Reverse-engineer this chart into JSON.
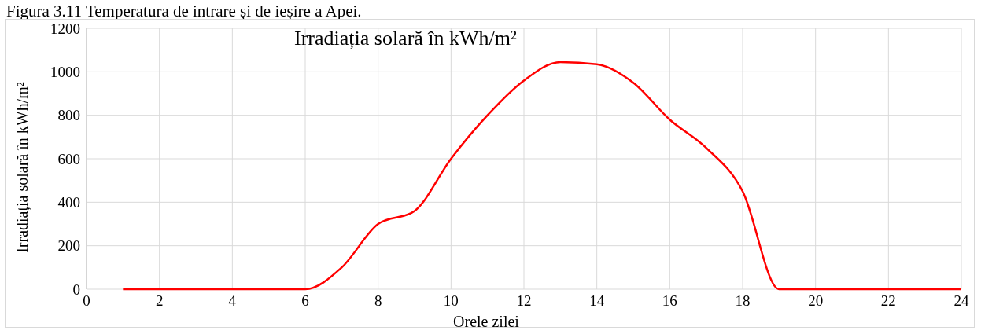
{
  "chart_data": {
    "type": "line",
    "title": "Irradiația solară în kWh/m²",
    "xlabel": "Orele zilei",
    "ylabel": "Irradiația solară în kWh/m²",
    "annotations": [
      "Figura 3.11 Temperatura de intrare și de ieșire a Apei."
    ],
    "x": [
      1,
      2,
      3,
      4,
      5,
      6,
      7,
      8,
      9,
      10,
      11,
      12,
      13,
      14,
      15,
      16,
      17,
      18,
      19,
      20,
      21,
      22,
      23,
      24
    ],
    "series": [
      {
        "color": "#ff0000",
        "values": [
          0,
          0,
          0,
          0,
          0,
          0,
          100,
          300,
          360,
          600,
          800,
          960,
          1045,
          1035,
          950,
          780,
          650,
          450,
          0,
          0,
          0,
          0,
          0,
          0
        ]
      }
    ],
    "xlim": [
      0,
      24
    ],
    "xticks": [
      0,
      2,
      4,
      6,
      8,
      10,
      12,
      14,
      16,
      18,
      20,
      22,
      24
    ],
    "ylim": [
      0,
      1200
    ],
    "yticks": [
      0,
      200,
      400,
      600,
      800,
      1000,
      1200
    ],
    "grid": true,
    "marker": "none",
    "line_style": "solid"
  }
}
